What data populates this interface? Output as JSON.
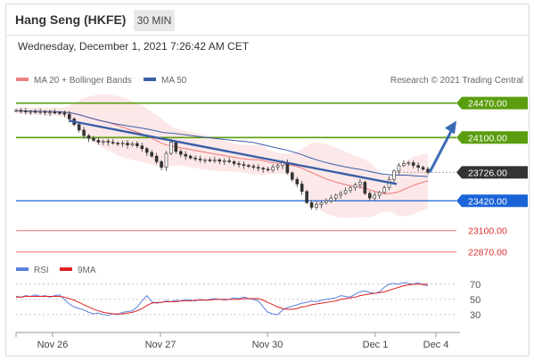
{
  "header": {
    "title": "Hang Seng (HKFE)",
    "interval": "30 MIN",
    "datetime": "Wednesday, December 1, 2021 7:26:42 AM CET"
  },
  "legend": {
    "ma20_bollinger": "MA 20 + Bollinger Bands",
    "ma50": "MA 50",
    "credit": "Research © 2021 Trading Central"
  },
  "colors": {
    "resistance": "#5a9e0f",
    "current": "#333333",
    "pivot": "#1a64d8",
    "support": "#f08080",
    "ma20": "#f08080",
    "ma50": "#3a5ea8",
    "rsi": "#5a7fdc",
    "rsi_ma": "#e02020"
  },
  "chart_data": [
    {
      "type": "candlestick",
      "title": "Hang Seng (HKFE)",
      "ylim": [
        22800,
        24620
      ],
      "x_labels": [
        "Nov 26",
        "Nov 27",
        "Nov 30",
        "Dec 1",
        "Dec 4"
      ],
      "levels": [
        {
          "label": "24470.00",
          "value": 24470,
          "kind": "resistance"
        },
        {
          "label": "24100.00",
          "value": 24100,
          "kind": "resistance"
        },
        {
          "label": "23726.00",
          "value": 23726,
          "kind": "current"
        },
        {
          "label": "23420.00",
          "value": 23420,
          "kind": "pivot"
        },
        {
          "label": "23100.00",
          "value": 23100,
          "kind": "support"
        },
        {
          "label": "22870.00",
          "value": 22870,
          "kind": "support"
        }
      ],
      "close_series": [
        24390,
        24385,
        24380,
        24380,
        24375,
        24378,
        24370,
        24372,
        24368,
        24365,
        24350,
        24300,
        24240,
        24180,
        24120,
        24090,
        24070,
        24050,
        24060,
        24050,
        24040,
        24030,
        24040,
        24020,
        24035,
        24010,
        23980,
        23940,
        23900,
        23840,
        23780,
        23930,
        24050,
        23950,
        23920,
        23900,
        23880,
        23870,
        23860,
        23860,
        23850,
        23860,
        23845,
        23850,
        23840,
        23820,
        23810,
        23800,
        23790,
        23780,
        23770,
        23760,
        23750,
        23780,
        23800,
        23830,
        23720,
        23650,
        23600,
        23520,
        23400,
        23350,
        23380,
        23400,
        23420,
        23450,
        23480,
        23500,
        23530,
        23560,
        23590,
        23620,
        23500,
        23450,
        23480,
        23510,
        23560,
        23650,
        23740,
        23800,
        23820,
        23830,
        23800,
        23780,
        23760,
        23726
      ],
      "trend_line": {
        "from": 24280,
        "to": 23600
      },
      "forecast_arrow": {
        "from": 23726,
        "to": 24280
      }
    },
    {
      "type": "line",
      "title": "RSI",
      "series": [
        {
          "name": "RSI",
          "values": [
            54,
            53,
            55,
            54,
            56,
            54,
            55,
            53,
            55,
            56,
            50,
            44,
            40,
            38,
            36,
            33,
            31,
            32,
            30,
            29,
            31,
            30,
            33,
            34,
            35,
            40,
            48,
            55,
            47,
            45,
            46,
            48,
            47,
            49,
            48,
            50,
            49,
            48,
            50,
            49,
            50,
            51,
            50,
            49,
            50,
            52,
            51,
            53,
            51,
            50,
            48,
            40,
            33,
            31,
            30,
            36,
            39,
            41,
            43,
            45,
            46,
            48,
            47,
            49,
            50,
            51,
            52,
            55,
            54,
            53,
            57,
            60,
            61,
            59,
            58,
            60,
            66,
            70,
            71,
            70,
            72,
            71,
            70,
            72,
            69,
            68
          ]
        },
        {
          "name": "9MA",
          "values": [
            53,
            53,
            54,
            54,
            54,
            54,
            54,
            54,
            54,
            54,
            53,
            51,
            49,
            46,
            43,
            40,
            37,
            35,
            33,
            32,
            31,
            31,
            31,
            32,
            33,
            35,
            38,
            42,
            45,
            46,
            46,
            47,
            47,
            47,
            48,
            48,
            48,
            49,
            49,
            49,
            49,
            50,
            50,
            50,
            50,
            50,
            50,
            51,
            51,
            51,
            51,
            49,
            46,
            43,
            40,
            38,
            37,
            37,
            38,
            40,
            41,
            43,
            44,
            45,
            46,
            47,
            48,
            50,
            51,
            52,
            53,
            55,
            56,
            57,
            58,
            59,
            60,
            62,
            64,
            66,
            68,
            69,
            70,
            70,
            70,
            70
          ]
        }
      ],
      "y_ticks": [
        70,
        50,
        30
      ],
      "ylim": [
        10,
        78
      ]
    }
  ]
}
